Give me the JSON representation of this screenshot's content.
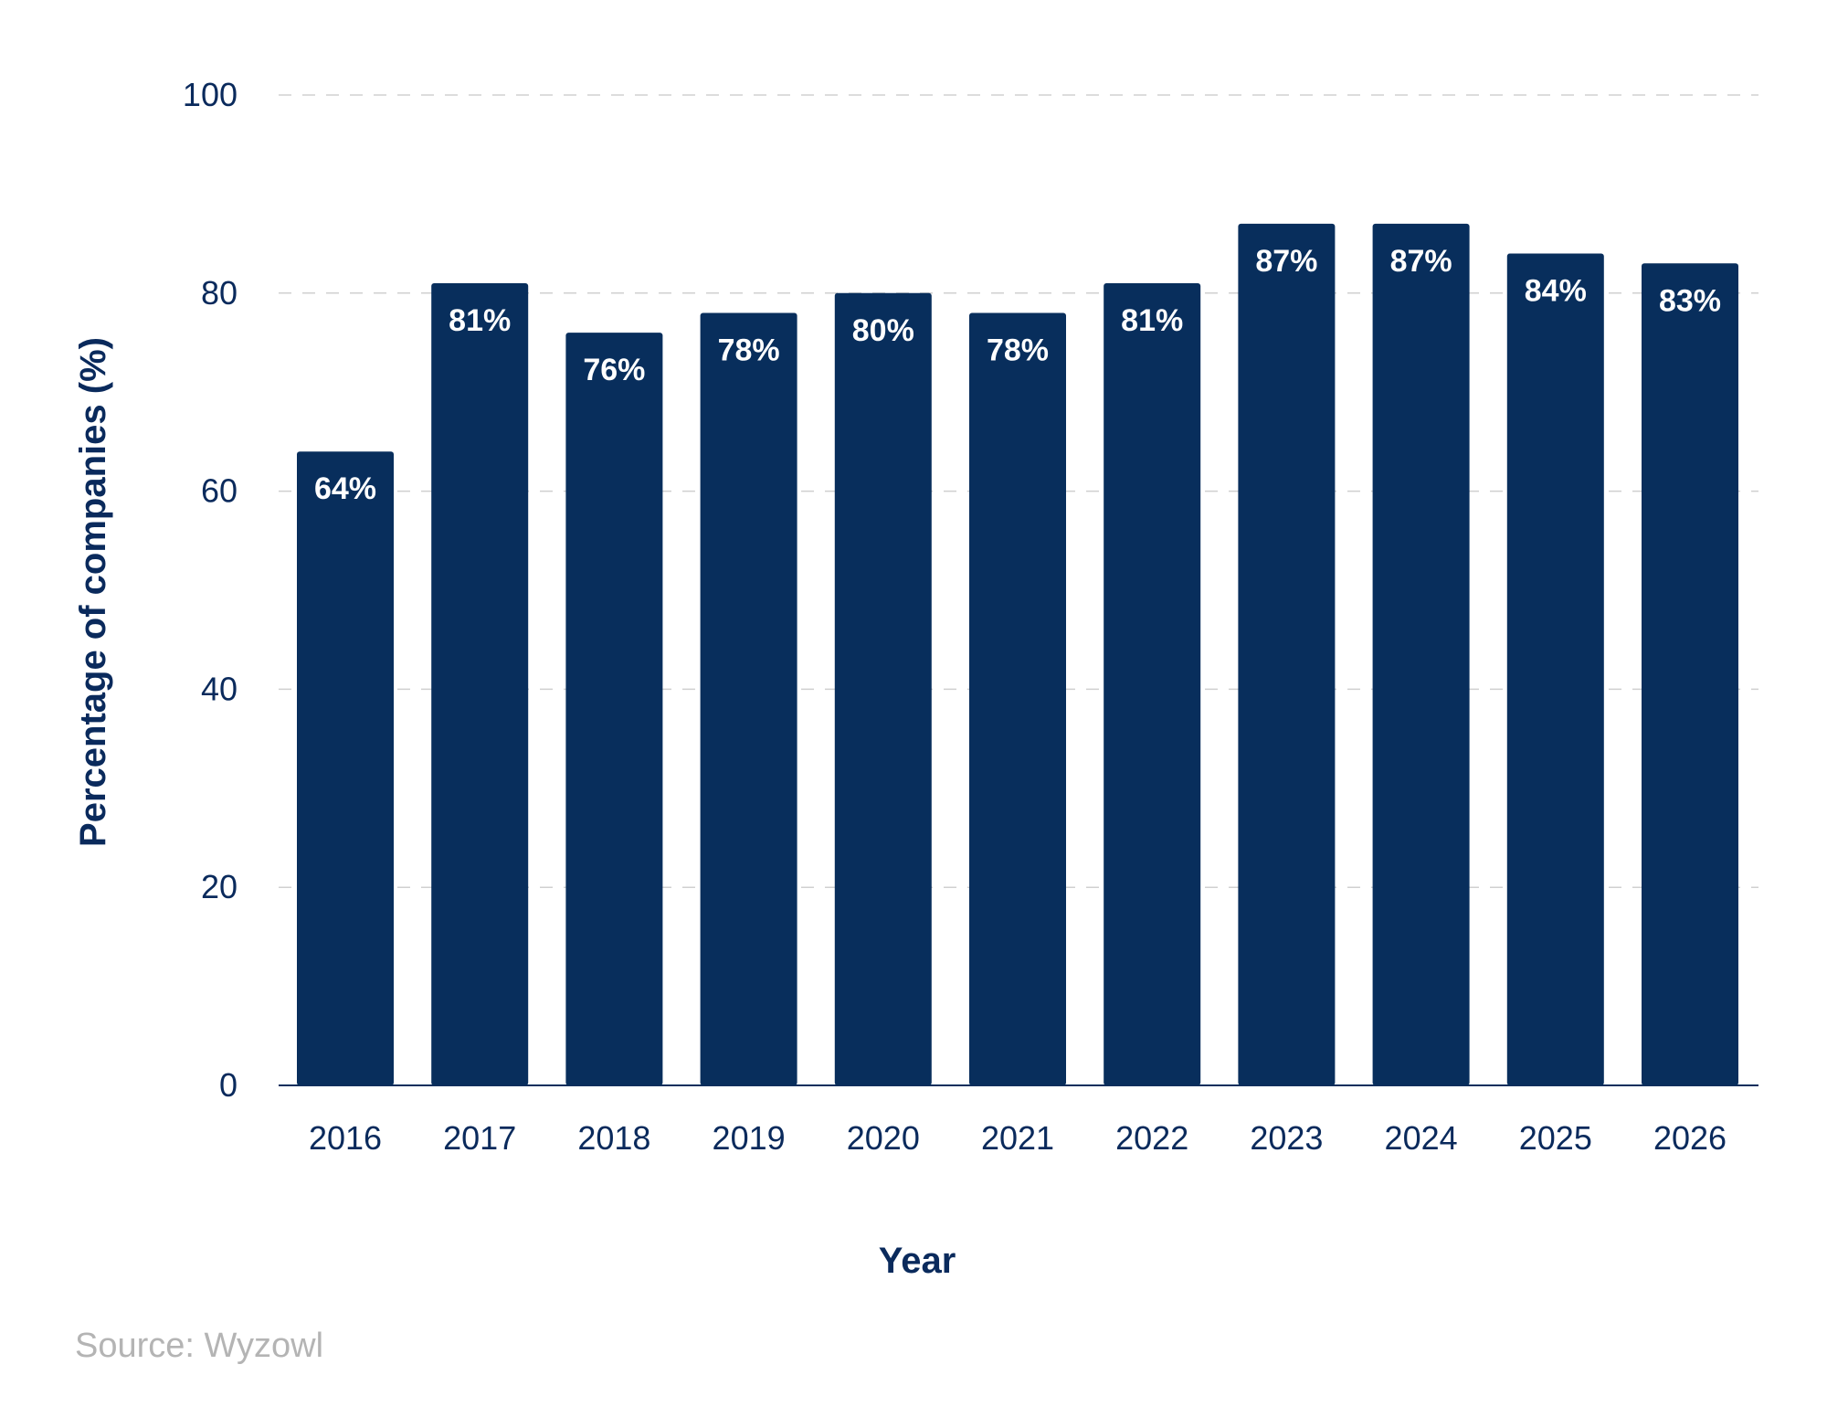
{
  "chart_data": {
    "type": "bar",
    "categories": [
      "2016",
      "2017",
      "2018",
      "2019",
      "2020",
      "2021",
      "2022",
      "2023",
      "2024",
      "2025",
      "2026"
    ],
    "values": [
      64,
      81,
      76,
      78,
      80,
      78,
      81,
      87,
      87,
      84,
      83
    ],
    "data_labels": [
      "64%",
      "81%",
      "76%",
      "78%",
      "80%",
      "78%",
      "81%",
      "87%",
      "87%",
      "84%",
      "83%"
    ],
    "xlabel": "Year",
    "ylabel": "Percentage of companies (%)",
    "ylim": [
      0,
      100
    ],
    "yticks": [
      0,
      20,
      40,
      60,
      80,
      100
    ],
    "grid": true,
    "bar_color": "#082e5c",
    "label_color": "#ffffff",
    "text_color": "#0a2a5c",
    "grid_color": "#d0d0d0"
  },
  "source": "Source: Wyzowl"
}
